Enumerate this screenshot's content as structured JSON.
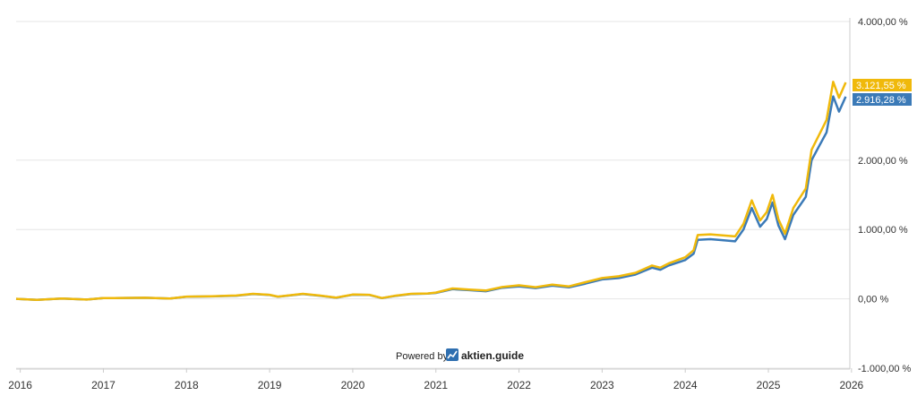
{
  "chart_data": {
    "type": "line",
    "x_range": [
      2015.95,
      2025.98
    ],
    "ylim": [
      -1000,
      4000
    ],
    "y_ticks": [
      {
        "value": 4000,
        "label": "4.000,00 %"
      },
      {
        "value": 2000,
        "label": "2.000,00 %"
      },
      {
        "value": 1000,
        "label": "1.000,00 %"
      },
      {
        "value": 0,
        "label": "0,00 %"
      },
      {
        "value": -1000,
        "label": "-1.000,00 %"
      }
    ],
    "x_ticks": [
      {
        "value": 2016,
        "label": "2016"
      },
      {
        "value": 2017,
        "label": "2017"
      },
      {
        "value": 2018,
        "label": "2018"
      },
      {
        "value": 2019,
        "label": "2019"
      },
      {
        "value": 2020,
        "label": "2020"
      },
      {
        "value": 2021,
        "label": "2021"
      },
      {
        "value": 2022,
        "label": "2022"
      },
      {
        "value": 2023,
        "label": "2023"
      },
      {
        "value": 2024,
        "label": "2024"
      },
      {
        "value": 2025,
        "label": "2025"
      },
      {
        "value": 2026,
        "label": "2026"
      }
    ],
    "grid": true,
    "series": [
      {
        "color": "#3b7ab7",
        "last_label": "2.916,28 %",
        "points": [
          [
            2015.95,
            0
          ],
          [
            2016.2,
            -15
          ],
          [
            2016.5,
            5
          ],
          [
            2016.8,
            -10
          ],
          [
            2017.0,
            10
          ],
          [
            2017.5,
            15
          ],
          [
            2017.8,
            5
          ],
          [
            2018.0,
            30
          ],
          [
            2018.3,
            35
          ],
          [
            2018.6,
            45
          ],
          [
            2018.8,
            70
          ],
          [
            2019.0,
            55
          ],
          [
            2019.1,
            30
          ],
          [
            2019.4,
            70
          ],
          [
            2019.6,
            45
          ],
          [
            2019.8,
            15
          ],
          [
            2020.0,
            60
          ],
          [
            2020.2,
            55
          ],
          [
            2020.35,
            10
          ],
          [
            2020.5,
            40
          ],
          [
            2020.7,
            70
          ],
          [
            2020.9,
            75
          ],
          [
            2021.0,
            85
          ],
          [
            2021.2,
            140
          ],
          [
            2021.4,
            125
          ],
          [
            2021.6,
            110
          ],
          [
            2021.8,
            160
          ],
          [
            2022.0,
            180
          ],
          [
            2022.2,
            155
          ],
          [
            2022.4,
            190
          ],
          [
            2022.6,
            165
          ],
          [
            2022.8,
            220
          ],
          [
            2023.0,
            280
          ],
          [
            2023.2,
            300
          ],
          [
            2023.4,
            350
          ],
          [
            2023.6,
            450
          ],
          [
            2023.7,
            420
          ],
          [
            2023.8,
            480
          ],
          [
            2024.0,
            560
          ],
          [
            2024.1,
            650
          ],
          [
            2024.15,
            850
          ],
          [
            2024.3,
            860
          ],
          [
            2024.4,
            850
          ],
          [
            2024.6,
            830
          ],
          [
            2024.7,
            1000
          ],
          [
            2024.8,
            1310
          ],
          [
            2024.9,
            1040
          ],
          [
            2024.98,
            1150
          ],
          [
            2025.05,
            1390
          ],
          [
            2025.12,
            1060
          ],
          [
            2025.2,
            860
          ],
          [
            2025.3,
            1210
          ],
          [
            2025.45,
            1470
          ],
          [
            2025.52,
            2000
          ],
          [
            2025.6,
            2180
          ],
          [
            2025.7,
            2400
          ],
          [
            2025.78,
            2920
          ],
          [
            2025.85,
            2700
          ],
          [
            2025.93,
            2916
          ]
        ]
      },
      {
        "color": "#f0b90b",
        "last_label": "3.121,55 %",
        "points": [
          [
            2015.95,
            0
          ],
          [
            2016.2,
            -15
          ],
          [
            2016.5,
            5
          ],
          [
            2016.8,
            -10
          ],
          [
            2017.0,
            10
          ],
          [
            2017.5,
            15
          ],
          [
            2017.8,
            5
          ],
          [
            2018.0,
            32
          ],
          [
            2018.3,
            38
          ],
          [
            2018.6,
            48
          ],
          [
            2018.8,
            72
          ],
          [
            2019.0,
            58
          ],
          [
            2019.1,
            32
          ],
          [
            2019.4,
            72
          ],
          [
            2019.6,
            48
          ],
          [
            2019.8,
            18
          ],
          [
            2020.0,
            62
          ],
          [
            2020.2,
            58
          ],
          [
            2020.35,
            12
          ],
          [
            2020.5,
            42
          ],
          [
            2020.7,
            72
          ],
          [
            2020.9,
            78
          ],
          [
            2021.0,
            90
          ],
          [
            2021.2,
            150
          ],
          [
            2021.4,
            135
          ],
          [
            2021.6,
            120
          ],
          [
            2021.8,
            170
          ],
          [
            2022.0,
            195
          ],
          [
            2022.2,
            168
          ],
          [
            2022.4,
            205
          ],
          [
            2022.6,
            180
          ],
          [
            2022.8,
            240
          ],
          [
            2023.0,
            300
          ],
          [
            2023.2,
            325
          ],
          [
            2023.4,
            375
          ],
          [
            2023.6,
            480
          ],
          [
            2023.7,
            450
          ],
          [
            2023.8,
            510
          ],
          [
            2024.0,
            600
          ],
          [
            2024.1,
            700
          ],
          [
            2024.15,
            920
          ],
          [
            2024.3,
            930
          ],
          [
            2024.4,
            920
          ],
          [
            2024.6,
            900
          ],
          [
            2024.7,
            1080
          ],
          [
            2024.8,
            1420
          ],
          [
            2024.9,
            1130
          ],
          [
            2024.98,
            1250
          ],
          [
            2025.05,
            1500
          ],
          [
            2025.12,
            1150
          ],
          [
            2025.2,
            940
          ],
          [
            2025.3,
            1310
          ],
          [
            2025.45,
            1590
          ],
          [
            2025.52,
            2150
          ],
          [
            2025.6,
            2340
          ],
          [
            2025.7,
            2580
          ],
          [
            2025.78,
            3130
          ],
          [
            2025.85,
            2900
          ],
          [
            2025.93,
            3121
          ]
        ]
      }
    ]
  },
  "watermark": {
    "powered_by": "Powered by",
    "brand": "aktien.guide"
  }
}
